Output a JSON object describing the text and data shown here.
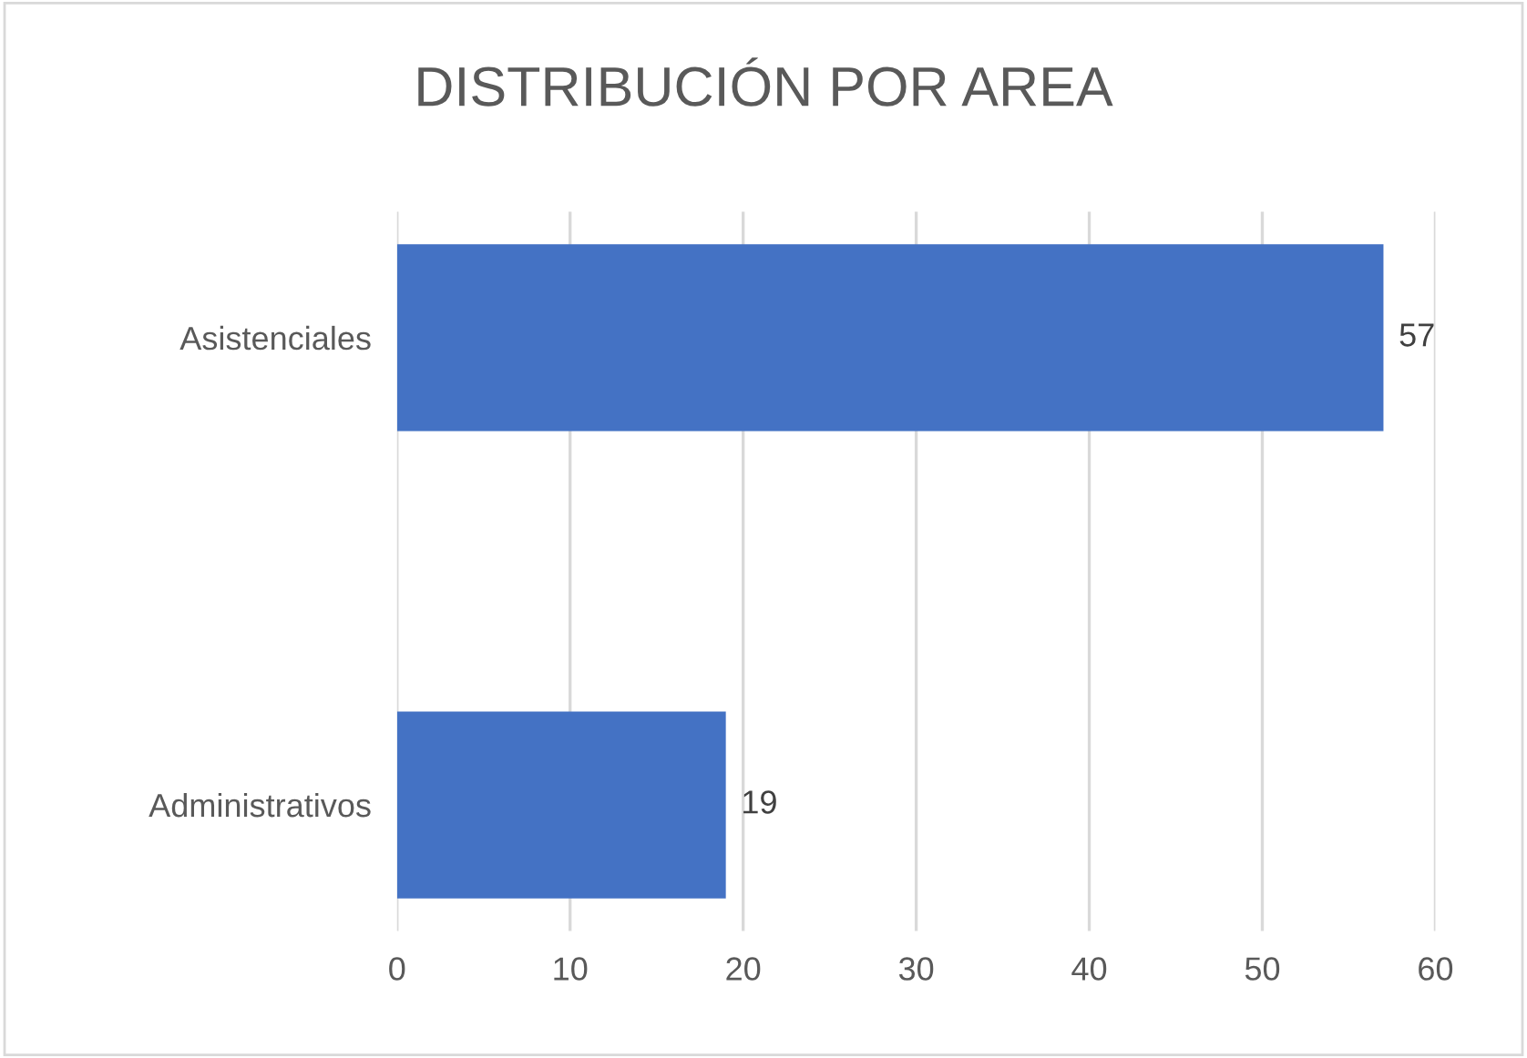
{
  "chart_data": {
    "type": "bar",
    "orientation": "horizontal",
    "title": "DISTRIBUCIÓN POR AREA",
    "categories": [
      "Asistenciales",
      "Administrativos"
    ],
    "values": [
      57,
      19
    ],
    "color": "#4472c4",
    "xlim": [
      0,
      60
    ],
    "xticks": [
      0,
      10,
      20,
      30,
      40,
      50,
      60
    ],
    "grid": "x",
    "data_labels": true
  }
}
